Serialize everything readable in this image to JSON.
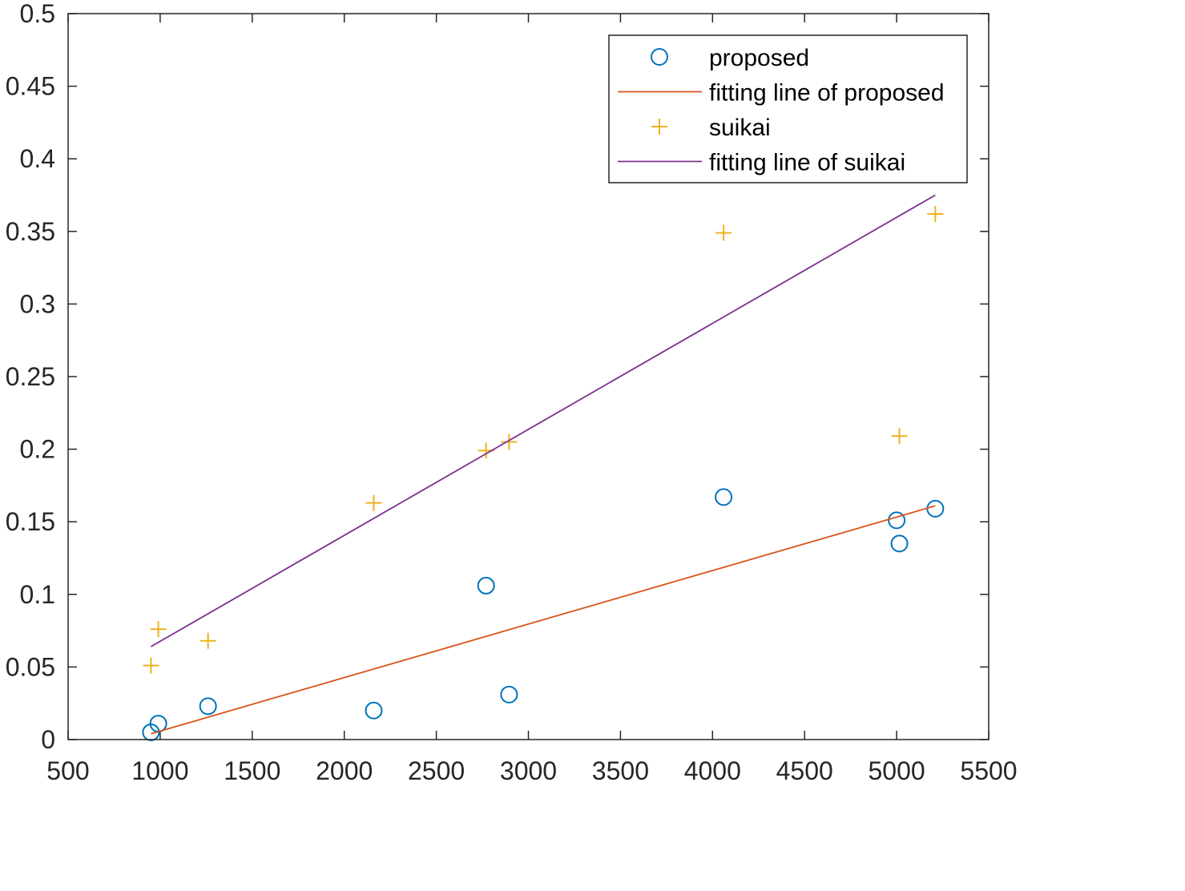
{
  "chart_data": {
    "type": "scatter",
    "title": "",
    "xlabel": "",
    "ylabel": "",
    "xlim": [
      500,
      5500
    ],
    "ylim": [
      0,
      0.5
    ],
    "x_ticks": [
      500,
      1000,
      1500,
      2000,
      2500,
      3000,
      3500,
      4000,
      4500,
      5000,
      5500
    ],
    "x_tick_labels": [
      "500",
      "1000",
      "1500",
      "2000",
      "2500",
      "3000",
      "3500",
      "4000",
      "4500",
      "5000",
      "5500"
    ],
    "y_ticks": [
      0,
      0.05,
      0.1,
      0.15,
      0.2,
      0.25,
      0.3,
      0.35,
      0.4,
      0.45,
      0.5
    ],
    "y_tick_labels": [
      "0",
      "0.05",
      "0.1",
      "0.15",
      "0.2",
      "0.25",
      "0.3",
      "0.35",
      "0.4",
      "0.45",
      "0.5"
    ],
    "grid": false,
    "legend_position": "top-right",
    "series": [
      {
        "name": "proposed",
        "kind": "scatter",
        "marker": "circle",
        "color": "#0072BD",
        "points": [
          [
            950,
            0.005
          ],
          [
            990,
            0.011
          ],
          [
            1260,
            0.023
          ],
          [
            2160,
            0.02
          ],
          [
            2770,
            0.106
          ],
          [
            2895,
            0.031
          ],
          [
            4060,
            0.167
          ],
          [
            5000,
            0.151
          ],
          [
            5015,
            0.135
          ],
          [
            5210,
            0.159
          ]
        ]
      },
      {
        "name": "fitting line of proposed",
        "kind": "line",
        "color": "#D95319",
        "points": [
          [
            950,
            0.004
          ],
          [
            5210,
            0.161
          ]
        ]
      },
      {
        "name": "suikai",
        "kind": "scatter",
        "marker": "plus",
        "color": "#EDB120",
        "points": [
          [
            950,
            0.051
          ],
          [
            990,
            0.076
          ],
          [
            1260,
            0.068
          ],
          [
            2160,
            0.163
          ],
          [
            2770,
            0.199
          ],
          [
            2895,
            0.205
          ],
          [
            4060,
            0.349
          ],
          [
            5015,
            0.209
          ],
          [
            5210,
            0.362
          ]
        ]
      },
      {
        "name": "fitting line of suikai",
        "kind": "line",
        "color": "#7E2F8E",
        "points": [
          [
            950,
            0.064
          ],
          [
            5210,
            0.375
          ]
        ]
      }
    ]
  }
}
